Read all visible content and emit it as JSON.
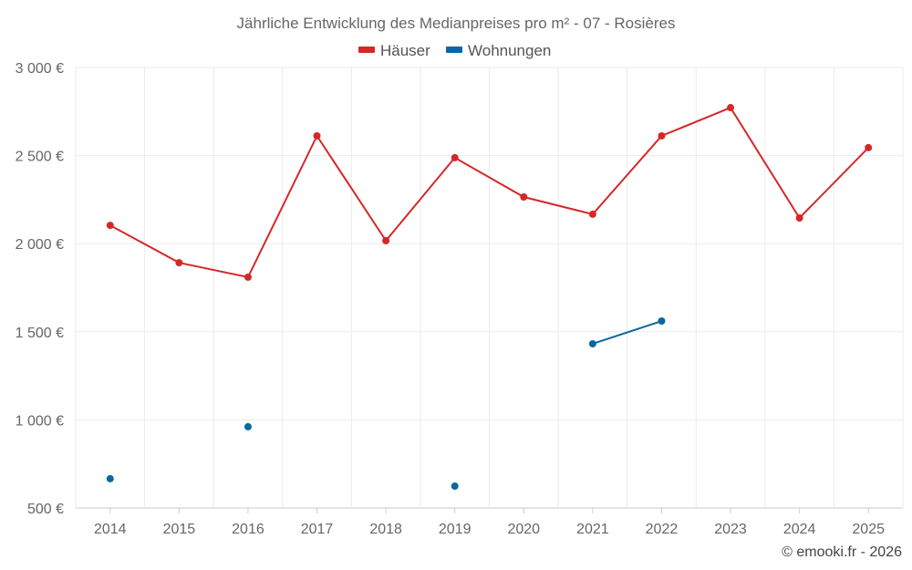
{
  "chart_data": {
    "type": "line",
    "title": "Jährliche Entwicklung des Medianpreises pro m² - 07 - Rosières",
    "xlabel": "",
    "ylabel": "",
    "categories": [
      "2014",
      "2015",
      "2016",
      "2017",
      "2018",
      "2019",
      "2020",
      "2021",
      "2022",
      "2023",
      "2024",
      "2025"
    ],
    "ylim": [
      500,
      3000
    ],
    "yticks": [
      500,
      1000,
      1500,
      2000,
      2500,
      3000
    ],
    "ytick_labels": [
      "500 €",
      "1 000 €",
      "1 500 €",
      "2 000 €",
      "2 500 €",
      "3 000 €"
    ],
    "grid": true,
    "legend_position": "top-center",
    "series": [
      {
        "name": "Häuser",
        "color": "#d62728",
        "values": [
          2104,
          1892,
          1810,
          2612,
          2017,
          2488,
          2265,
          2167,
          2612,
          2772,
          2146,
          2545
        ]
      },
      {
        "name": "Wohnungen",
        "color": "#0a67a0",
        "values": [
          666,
          null,
          961,
          null,
          null,
          624,
          null,
          1432,
          1561,
          null,
          null,
          null
        ]
      }
    ],
    "credit": "© emooki.fr - 2026"
  }
}
